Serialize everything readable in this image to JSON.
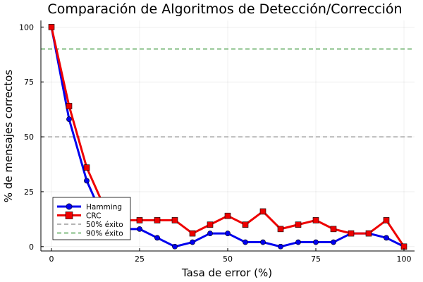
{
  "chart_data": {
    "type": "line",
    "title": "Comparación de Algoritmos de Detección/Corrección",
    "xlabel": "Tasa de error (%)",
    "ylabel": "% de mensajes correctos",
    "xlim": [
      -3,
      103
    ],
    "ylim": [
      -2,
      103
    ],
    "xticks": [
      0,
      25,
      50,
      75,
      100
    ],
    "yticks": [
      0,
      25,
      50,
      75,
      100
    ],
    "grid": true,
    "legend_position": "bottom-left",
    "x": [
      0,
      5,
      10,
      15,
      20,
      25,
      30,
      35,
      40,
      45,
      50,
      55,
      60,
      65,
      70,
      75,
      80,
      85,
      90,
      95,
      100
    ],
    "series": [
      {
        "name": "Hamming",
        "color": "#0000ee",
        "marker": "circle",
        "values": [
          100,
          58,
          30,
          12,
          8,
          8,
          4,
          0,
          2,
          6,
          6,
          2,
          2,
          0,
          2,
          2,
          2,
          6,
          6,
          4,
          0
        ]
      },
      {
        "name": "CRC",
        "color": "#ee0000",
        "marker": "square",
        "values": [
          100,
          64,
          36,
          18,
          12,
          12,
          12,
          12,
          6,
          10,
          14,
          10,
          16,
          8,
          10,
          12,
          8,
          6,
          6,
          12,
          0
        ]
      }
    ],
    "reference_lines": [
      {
        "name": "50% éxito",
        "y": 50,
        "color": "#888888",
        "style": "dashed"
      },
      {
        "name": "90% éxito",
        "y": 90,
        "color": "#228b22",
        "style": "dashed"
      }
    ]
  }
}
